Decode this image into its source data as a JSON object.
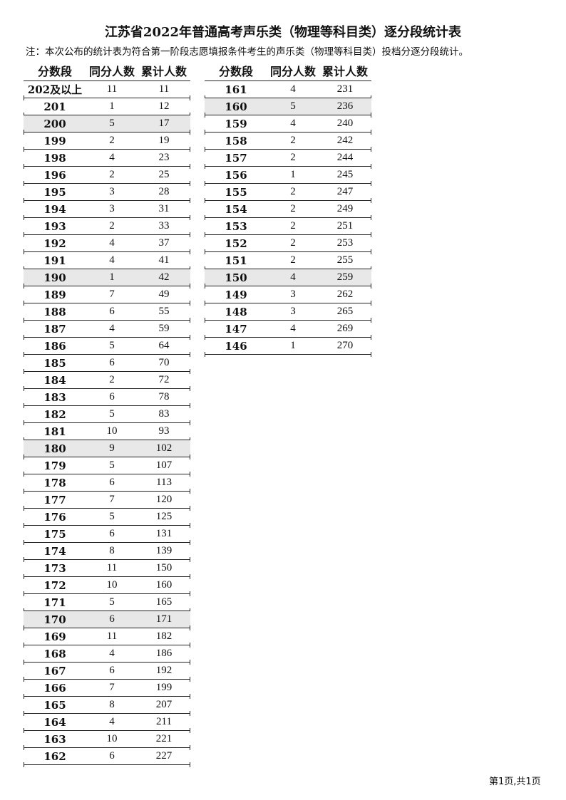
{
  "title": "江苏省2022年普通高考声乐类（物理等科目类）逐分段统计表",
  "note": "注：本次公布的统计表为符合第一阶段志愿填报条件考生的声乐类（物理等科目类）投档分逐分段统计。",
  "headers": [
    "分数段",
    "同分人数",
    "累计人数"
  ],
  "highlight_color": "#e8e8e8",
  "left_rows": [
    {
      "score": "202及以上",
      "count": "11",
      "cum": "11"
    },
    {
      "score": "201",
      "count": "1",
      "cum": "12"
    },
    {
      "score": "200",
      "count": "5",
      "cum": "17",
      "highlight": true
    },
    {
      "score": "199",
      "count": "2",
      "cum": "19"
    },
    {
      "score": "198",
      "count": "4",
      "cum": "23"
    },
    {
      "score": "196",
      "count": "2",
      "cum": "25"
    },
    {
      "score": "195",
      "count": "3",
      "cum": "28"
    },
    {
      "score": "194",
      "count": "3",
      "cum": "31"
    },
    {
      "score": "193",
      "count": "2",
      "cum": "33"
    },
    {
      "score": "192",
      "count": "4",
      "cum": "37"
    },
    {
      "score": "191",
      "count": "4",
      "cum": "41"
    },
    {
      "score": "190",
      "count": "1",
      "cum": "42",
      "highlight": true
    },
    {
      "score": "189",
      "count": "7",
      "cum": "49"
    },
    {
      "score": "188",
      "count": "6",
      "cum": "55"
    },
    {
      "score": "187",
      "count": "4",
      "cum": "59"
    },
    {
      "score": "186",
      "count": "5",
      "cum": "64"
    },
    {
      "score": "185",
      "count": "6",
      "cum": "70"
    },
    {
      "score": "184",
      "count": "2",
      "cum": "72"
    },
    {
      "score": "183",
      "count": "6",
      "cum": "78"
    },
    {
      "score": "182",
      "count": "5",
      "cum": "83"
    },
    {
      "score": "181",
      "count": "10",
      "cum": "93"
    },
    {
      "score": "180",
      "count": "9",
      "cum": "102",
      "highlight": true
    },
    {
      "score": "179",
      "count": "5",
      "cum": "107"
    },
    {
      "score": "178",
      "count": "6",
      "cum": "113"
    },
    {
      "score": "177",
      "count": "7",
      "cum": "120"
    },
    {
      "score": "176",
      "count": "5",
      "cum": "125"
    },
    {
      "score": "175",
      "count": "6",
      "cum": "131"
    },
    {
      "score": "174",
      "count": "8",
      "cum": "139"
    },
    {
      "score": "173",
      "count": "11",
      "cum": "150"
    },
    {
      "score": "172",
      "count": "10",
      "cum": "160"
    },
    {
      "score": "171",
      "count": "5",
      "cum": "165"
    },
    {
      "score": "170",
      "count": "6",
      "cum": "171",
      "highlight": true
    },
    {
      "score": "169",
      "count": "11",
      "cum": "182"
    },
    {
      "score": "168",
      "count": "4",
      "cum": "186"
    },
    {
      "score": "167",
      "count": "6",
      "cum": "192"
    },
    {
      "score": "166",
      "count": "7",
      "cum": "199"
    },
    {
      "score": "165",
      "count": "8",
      "cum": "207"
    },
    {
      "score": "164",
      "count": "4",
      "cum": "211"
    },
    {
      "score": "163",
      "count": "10",
      "cum": "221"
    },
    {
      "score": "162",
      "count": "6",
      "cum": "227"
    }
  ],
  "right_rows": [
    {
      "score": "161",
      "count": "4",
      "cum": "231"
    },
    {
      "score": "160",
      "count": "5",
      "cum": "236",
      "highlight": true
    },
    {
      "score": "159",
      "count": "4",
      "cum": "240"
    },
    {
      "score": "158",
      "count": "2",
      "cum": "242"
    },
    {
      "score": "157",
      "count": "2",
      "cum": "244"
    },
    {
      "score": "156",
      "count": "1",
      "cum": "245"
    },
    {
      "score": "155",
      "count": "2",
      "cum": "247"
    },
    {
      "score": "154",
      "count": "2",
      "cum": "249"
    },
    {
      "score": "153",
      "count": "2",
      "cum": "251"
    },
    {
      "score": "152",
      "count": "2",
      "cum": "253"
    },
    {
      "score": "151",
      "count": "2",
      "cum": "255"
    },
    {
      "score": "150",
      "count": "4",
      "cum": "259",
      "highlight": true
    },
    {
      "score": "149",
      "count": "3",
      "cum": "262"
    },
    {
      "score": "148",
      "count": "3",
      "cum": "265"
    },
    {
      "score": "147",
      "count": "4",
      "cum": "269"
    },
    {
      "score": "146",
      "count": "1",
      "cum": "270"
    }
  ],
  "footer": "第1页,共1页"
}
